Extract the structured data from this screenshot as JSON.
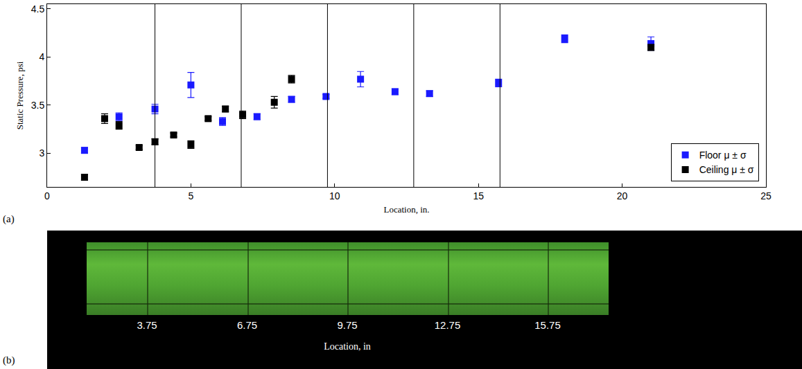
{
  "chart_data": {
    "type": "scatter",
    "x_label": "Location, in.",
    "y_label": "Static Pressure, psi",
    "xlim": [
      0,
      25
    ],
    "xticks": [
      0,
      5,
      10,
      15,
      20,
      25
    ],
    "ylim": [
      2.65,
      4.55
    ],
    "yticks": [
      3,
      3.5,
      4,
      4.5
    ],
    "grid": false,
    "legend": "bottom right",
    "marker": "square",
    "vertical_lines": [
      3.75,
      6.75,
      9.75,
      12.75,
      15.75
    ],
    "series": [
      {
        "name": "Floor μ ± σ",
        "color": "#1a1aff",
        "x": [
          1.3,
          2.5,
          3.75,
          5.0,
          6.1,
          7.3,
          8.5,
          9.7,
          10.9,
          12.1,
          13.3,
          15.7,
          18.0,
          21.0
        ],
        "values": [
          3.03,
          3.38,
          3.46,
          3.71,
          3.33,
          3.38,
          3.56,
          3.59,
          3.77,
          3.64,
          3.62,
          3.73,
          4.19,
          4.14
        ],
        "error": [
          0.03,
          0.04,
          0.05,
          0.13,
          0.04,
          0.03,
          0.03,
          0.02,
          0.08,
          0.03,
          0.03,
          0.04,
          0.04,
          0.07
        ]
      },
      {
        "name": "Ceiling μ ± σ",
        "color": "#000000",
        "x": [
          1.3,
          2.0,
          2.5,
          3.2,
          3.75,
          4.4,
          5.0,
          5.6,
          6.2,
          6.8,
          7.9,
          8.5,
          21.0
        ],
        "values": [
          2.75,
          3.36,
          3.29,
          3.06,
          3.12,
          3.19,
          3.09,
          3.36,
          3.46,
          3.4,
          3.53,
          3.77,
          4.1
        ],
        "error": [
          0.03,
          0.05,
          0.04,
          0.02,
          0.03,
          0.02,
          0.04,
          0.02,
          0.03,
          0.04,
          0.06,
          0.04,
          0.03
        ]
      }
    ]
  },
  "panel_labels": [
    "(a)",
    "(b)"
  ],
  "image_panel": {
    "locations": [
      3.75,
      6.75,
      9.75,
      12.75,
      15.75
    ],
    "axis_label": "Location, in"
  }
}
